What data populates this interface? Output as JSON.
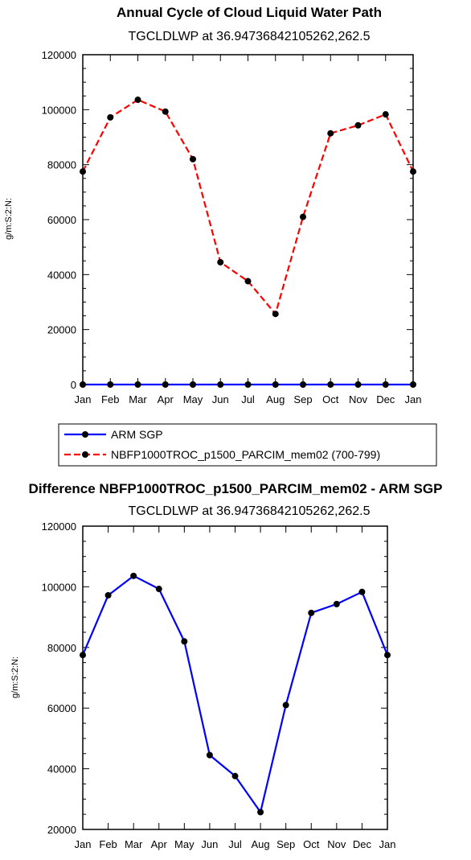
{
  "chart_data": [
    {
      "type": "line",
      "title": "Annual Cycle of Cloud Liquid Water Path",
      "subtitle": "TGCLDLWP at 36.94736842105262,262.5",
      "ylabel": "g/m:S:2:N:",
      "xlabel": "",
      "categories": [
        "Jan",
        "Feb",
        "Mar",
        "Apr",
        "May",
        "Jun",
        "Jul",
        "Aug",
        "Sep",
        "Oct",
        "Nov",
        "Dec",
        "Jan"
      ],
      "ylim": [
        0,
        120000
      ],
      "yticks": [
        "0",
        "20000",
        "40000",
        "60000",
        "80000",
        "100000",
        "120000"
      ],
      "series": [
        {
          "name": "ARM SGP",
          "color": "#0000ff",
          "style": "solid",
          "values": [
            0,
            0,
            0,
            0,
            0,
            0,
            0,
            0,
            0,
            0,
            0,
            0,
            0
          ]
        },
        {
          "name": "NBFP1000TROC_p1500_PARCIM_mem02 (700-799)",
          "color": "#ff0000",
          "style": "dashed",
          "values": [
            77500,
            97200,
            103600,
            99300,
            82000,
            44500,
            37600,
            25700,
            61000,
            91400,
            94300,
            98300,
            77500
          ]
        }
      ],
      "legend": "below"
    },
    {
      "type": "line",
      "title": "Difference NBFP1000TROC_p1500_PARCIM_mem02 - ARM SGP",
      "subtitle": "TGCLDLWP at 36.94736842105262,262.5",
      "ylabel": "g/m:S:2:N:",
      "xlabel": "",
      "categories": [
        "Jan",
        "Feb",
        "Mar",
        "Apr",
        "May",
        "Jun",
        "Jul",
        "Aug",
        "Sep",
        "Oct",
        "Nov",
        "Dec",
        "Jan"
      ],
      "ylim": [
        20000,
        120000
      ],
      "yticks": [
        "20000",
        "40000",
        "60000",
        "80000",
        "100000",
        "120000"
      ],
      "series": [
        {
          "color": "#0000ff",
          "style": "solid",
          "values": [
            77500,
            97200,
            103600,
            99300,
            82000,
            44500,
            37600,
            25700,
            61000,
            91400,
            94300,
            98300,
            77500
          ]
        }
      ]
    }
  ]
}
